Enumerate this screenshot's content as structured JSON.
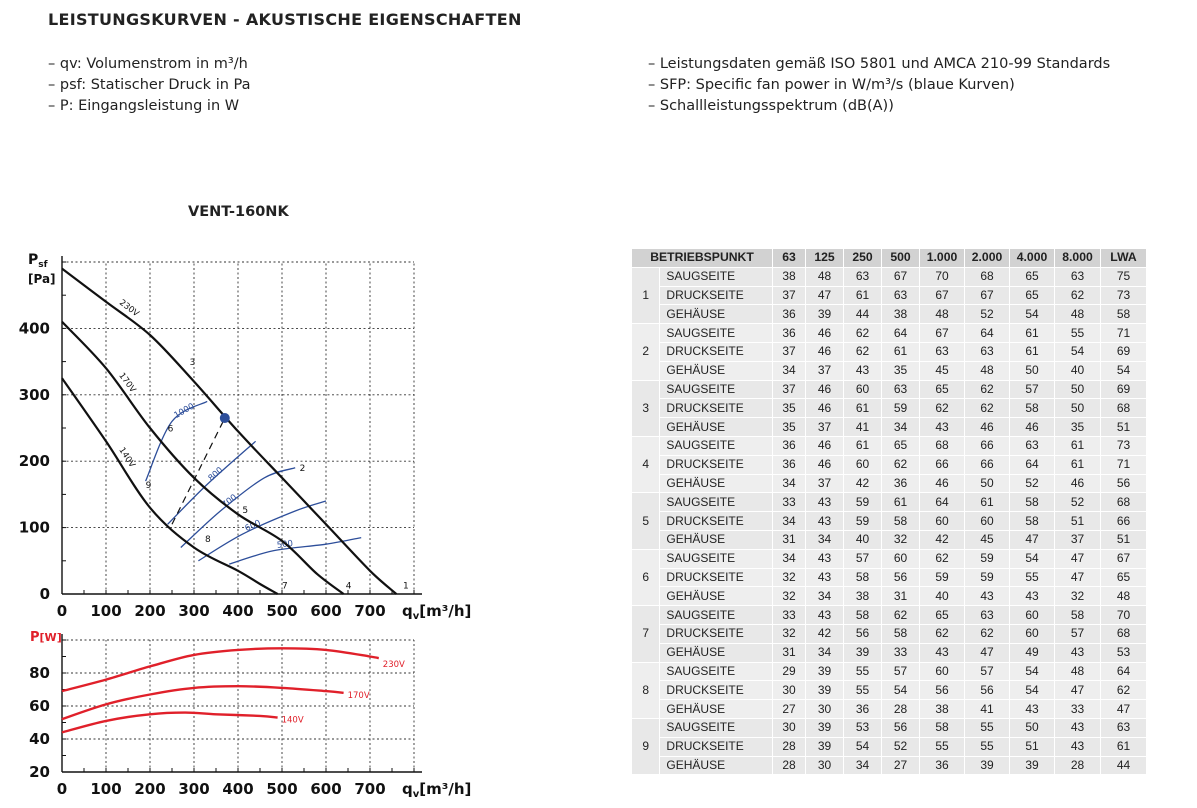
{
  "title": "LEISTUNGSKURVEN - AKUSTISCHE EIGENSCHAFTEN",
  "notes_left": [
    "– qv: Volumenstrom in m³/h",
    "– psf: Statischer Druck in Pa",
    "– P: Eingangsleistung in W"
  ],
  "notes_right": [
    "– Leistungsdaten gemäß ISO 5801 und AMCA 210-99 Standards",
    "– SFP: Specific fan power in W/m³/s (blaue Kurven)",
    "– Schallleistungsspektrum (dB(A))"
  ],
  "model": "VENT-160NK",
  "colors": {
    "fan_curve": "#111111",
    "sfp_curve": "#2d4e9a",
    "power_curve": "#e0202a",
    "operating_point": "#2d4e9a",
    "grid": "#333333"
  },
  "chart_data": [
    {
      "type": "line",
      "name": "pressure",
      "ylabel_main": "P",
      "ylabel_sub": "sf",
      "yunit": "[Pa]",
      "xlabel_main": "q",
      "xlabel_sub": "v",
      "xunit": "[m³/h]",
      "xlim": [
        0,
        800
      ],
      "ylim": [
        0,
        500
      ],
      "xticks": [
        0,
        100,
        200,
        300,
        400,
        500,
        600,
        700
      ],
      "yticks": [
        0,
        100,
        200,
        300,
        400
      ],
      "grid": true,
      "fan_curves": [
        {
          "label": "230V",
          "points": [
            [
              0,
              490
            ],
            [
              100,
              440
            ],
            [
              200,
              390
            ],
            [
              300,
              320
            ],
            [
              400,
              245
            ],
            [
              500,
              175
            ],
            [
              600,
              105
            ],
            [
              700,
              35
            ],
            [
              760,
              0
            ]
          ]
        },
        {
          "label": "170V",
          "points": [
            [
              0,
              410
            ],
            [
              100,
              340
            ],
            [
              200,
              250
            ],
            [
              300,
              175
            ],
            [
              400,
              120
            ],
            [
              500,
              80
            ],
            [
              580,
              30
            ],
            [
              640,
              0
            ]
          ]
        },
        {
          "label": "140V",
          "points": [
            [
              0,
              325
            ],
            [
              100,
              230
            ],
            [
              200,
              130
            ],
            [
              300,
              70
            ],
            [
              400,
              35
            ],
            [
              450,
              15
            ],
            [
              490,
              0
            ]
          ]
        }
      ],
      "sfp_curves": [
        {
          "label": "1000",
          "points": [
            [
              190,
              170
            ],
            [
              250,
              260
            ],
            [
              330,
              290
            ]
          ]
        },
        {
          "label": "800",
          "points": [
            [
              240,
              105
            ],
            [
              330,
              165
            ],
            [
              440,
              230
            ]
          ]
        },
        {
          "label": "700",
          "points": [
            [
              270,
              70
            ],
            [
              360,
              125
            ],
            [
              460,
              175
            ],
            [
              530,
              190
            ]
          ]
        },
        {
          "label": "600",
          "points": [
            [
              310,
              50
            ],
            [
              410,
              90
            ],
            [
              530,
              125
            ],
            [
              600,
              140
            ]
          ]
        },
        {
          "label": "500",
          "points": [
            [
              380,
              45
            ],
            [
              480,
              65
            ],
            [
              600,
              75
            ],
            [
              680,
              85
            ]
          ]
        }
      ],
      "system_line": {
        "points": [
          [
            250,
            105
          ],
          [
            370,
            265
          ]
        ]
      },
      "operating_point": {
        "x": 370,
        "y": 265
      },
      "point_labels": [
        {
          "label": "1",
          "x": 775,
          "y": 8
        },
        {
          "label": "2",
          "x": 540,
          "y": 185
        },
        {
          "label": "3",
          "x": 290,
          "y": 345
        },
        {
          "label": "4",
          "x": 645,
          "y": 8
        },
        {
          "label": "5",
          "x": 410,
          "y": 122
        },
        {
          "label": "6",
          "x": 240,
          "y": 245
        },
        {
          "label": "7",
          "x": 500,
          "y": 8
        },
        {
          "label": "8",
          "x": 325,
          "y": 78
        },
        {
          "label": "9",
          "x": 190,
          "y": 160
        }
      ]
    },
    {
      "type": "line",
      "name": "power",
      "ylabel_main": "P",
      "yunit": "[W]",
      "xlabel_main": "q",
      "xlabel_sub": "v",
      "xunit": "[m³/h]",
      "xlim": [
        0,
        800
      ],
      "ylim": [
        20,
        100
      ],
      "xticks": [
        0,
        100,
        200,
        300,
        400,
        500,
        600,
        700
      ],
      "yticks": [
        20,
        40,
        60,
        80
      ],
      "grid": true,
      "series": [
        {
          "name": "230V",
          "points": [
            [
              0,
              69
            ],
            [
              100,
              76
            ],
            [
              200,
              84
            ],
            [
              300,
              91
            ],
            [
              400,
              94
            ],
            [
              500,
              95
            ],
            [
              600,
              94
            ],
            [
              700,
              90
            ],
            [
              720,
              89
            ]
          ]
        },
        {
          "name": "170V",
          "points": [
            [
              0,
              52
            ],
            [
              100,
              61
            ],
            [
              200,
              67
            ],
            [
              300,
              71
            ],
            [
              400,
              72
            ],
            [
              500,
              71
            ],
            [
              600,
              69
            ],
            [
              640,
              68
            ]
          ]
        },
        {
          "name": "140V",
          "points": [
            [
              0,
              44
            ],
            [
              100,
              51
            ],
            [
              200,
              55
            ],
            [
              280,
              56
            ],
            [
              350,
              55
            ],
            [
              450,
              54
            ],
            [
              490,
              53
            ]
          ]
        }
      ]
    }
  ],
  "table": {
    "headers": [
      "BETRIEBSPUNKT",
      "63",
      "125",
      "250",
      "500",
      "1.000",
      "2.000",
      "4.000",
      "8.000",
      "LWA"
    ],
    "groups": [
      {
        "point": "1",
        "rows": [
          {
            "name": "SAUGSEITE",
            "values": [
              "38",
              "48",
              "63",
              "67",
              "70",
              "68",
              "65",
              "63",
              "75"
            ]
          },
          {
            "name": "DRUCKSEITE",
            "values": [
              "37",
              "47",
              "61",
              "63",
              "67",
              "67",
              "65",
              "62",
              "73"
            ]
          },
          {
            "name": "GEHÄUSE",
            "values": [
              "36",
              "39",
              "44",
              "38",
              "48",
              "52",
              "54",
              "48",
              "58"
            ]
          }
        ]
      },
      {
        "point": "2",
        "rows": [
          {
            "name": "SAUGSEITE",
            "values": [
              "36",
              "46",
              "62",
              "64",
              "67",
              "64",
              "61",
              "55",
              "71"
            ]
          },
          {
            "name": "DRUCKSEITE",
            "values": [
              "37",
              "46",
              "62",
              "61",
              "63",
              "63",
              "61",
              "54",
              "69"
            ]
          },
          {
            "name": "GEHÄUSE",
            "values": [
              "34",
              "37",
              "43",
              "35",
              "45",
              "48",
              "50",
              "40",
              "54"
            ]
          }
        ]
      },
      {
        "point": "3",
        "rows": [
          {
            "name": "SAUGSEITE",
            "values": [
              "37",
              "46",
              "60",
              "63",
              "65",
              "62",
              "57",
              "50",
              "69"
            ]
          },
          {
            "name": "DRUCKSEITE",
            "values": [
              "35",
              "46",
              "61",
              "59",
              "62",
              "62",
              "58",
              "50",
              "68"
            ]
          },
          {
            "name": "GEHÄUSE",
            "values": [
              "35",
              "37",
              "41",
              "34",
              "43",
              "46",
              "46",
              "35",
              "51"
            ]
          }
        ]
      },
      {
        "point": "4",
        "rows": [
          {
            "name": "SAUGSEITE",
            "values": [
              "36",
              "46",
              "61",
              "65",
              "68",
              "66",
              "63",
              "61",
              "73"
            ]
          },
          {
            "name": "DRUCKSEITE",
            "values": [
              "36",
              "46",
              "60",
              "62",
              "66",
              "66",
              "64",
              "61",
              "71"
            ]
          },
          {
            "name": "GEHÄUSE",
            "values": [
              "34",
              "37",
              "42",
              "36",
              "46",
              "50",
              "52",
              "46",
              "56"
            ]
          }
        ]
      },
      {
        "point": "5",
        "rows": [
          {
            "name": "SAUGSEITE",
            "values": [
              "33",
              "43",
              "59",
              "61",
              "64",
              "61",
              "58",
              "52",
              "68"
            ]
          },
          {
            "name": "DRUCKSEITE",
            "values": [
              "34",
              "43",
              "59",
              "58",
              "60",
              "60",
              "58",
              "51",
              "66"
            ]
          },
          {
            "name": "GEHÄUSE",
            "values": [
              "31",
              "34",
              "40",
              "32",
              "42",
              "45",
              "47",
              "37",
              "51"
            ]
          }
        ]
      },
      {
        "point": "6",
        "rows": [
          {
            "name": "SAUGSEITE",
            "values": [
              "34",
              "43",
              "57",
              "60",
              "62",
              "59",
              "54",
              "47",
              "67"
            ]
          },
          {
            "name": "DRUCKSEITE",
            "values": [
              "32",
              "43",
              "58",
              "56",
              "59",
              "59",
              "55",
              "47",
              "65"
            ]
          },
          {
            "name": "GEHÄUSE",
            "values": [
              "32",
              "34",
              "38",
              "31",
              "40",
              "43",
              "43",
              "32",
              "48"
            ]
          }
        ]
      },
      {
        "point": "7",
        "rows": [
          {
            "name": "SAUGSEITE",
            "values": [
              "33",
              "43",
              "58",
              "62",
              "65",
              "63",
              "60",
              "58",
              "70"
            ]
          },
          {
            "name": "DRUCKSEITE",
            "values": [
              "32",
              "42",
              "56",
              "58",
              "62",
              "62",
              "60",
              "57",
              "68"
            ]
          },
          {
            "name": "GEHÄUSE",
            "values": [
              "31",
              "34",
              "39",
              "33",
              "43",
              "47",
              "49",
              "43",
              "53"
            ]
          }
        ]
      },
      {
        "point": "8",
        "rows": [
          {
            "name": "SAUGSEITE",
            "values": [
              "29",
              "39",
              "55",
              "57",
              "60",
              "57",
              "54",
              "48",
              "64"
            ]
          },
          {
            "name": "DRUCKSEITE",
            "values": [
              "30",
              "39",
              "55",
              "54",
              "56",
              "56",
              "54",
              "47",
              "62"
            ]
          },
          {
            "name": "GEHÄUSE",
            "values": [
              "27",
              "30",
              "36",
              "28",
              "38",
              "41",
              "43",
              "33",
              "47"
            ]
          }
        ]
      },
      {
        "point": "9",
        "rows": [
          {
            "name": "SAUGSEITE",
            "values": [
              "30",
              "39",
              "53",
              "56",
              "58",
              "55",
              "50",
              "43",
              "63"
            ]
          },
          {
            "name": "DRUCKSEITE",
            "values": [
              "28",
              "39",
              "54",
              "52",
              "55",
              "55",
              "51",
              "43",
              "61"
            ]
          },
          {
            "name": "GEHÄUSE",
            "values": [
              "28",
              "30",
              "34",
              "27",
              "36",
              "39",
              "39",
              "28",
              "44"
            ]
          }
        ]
      }
    ]
  }
}
